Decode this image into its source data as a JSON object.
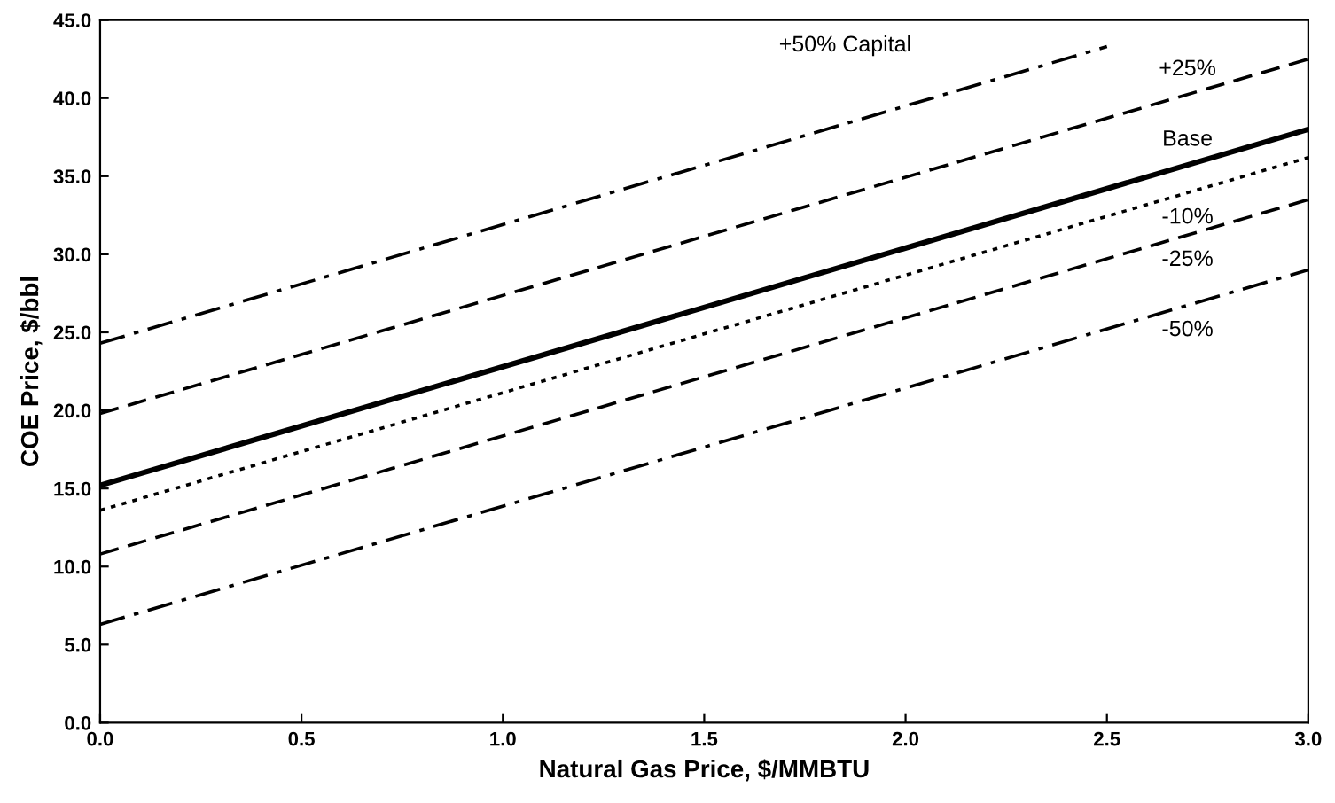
{
  "chart_data": {
    "type": "line",
    "xlabel": "Natural Gas Price, $/MMBTU",
    "ylabel": "COE Price, $/bbl",
    "xlim": [
      0,
      3
    ],
    "ylim": [
      0,
      45
    ],
    "xticks": [
      {
        "value": 0,
        "label": "0.0"
      },
      {
        "value": 0.5,
        "label": "0.5"
      },
      {
        "value": 1,
        "label": "1.0"
      },
      {
        "value": 1.5,
        "label": "1.5"
      },
      {
        "value": 2,
        "label": "2.0"
      },
      {
        "value": 2.5,
        "label": "2.5"
      },
      {
        "value": 3,
        "label": "3.0"
      }
    ],
    "yticks": [
      {
        "value": 0,
        "label": "0.0"
      },
      {
        "value": 5,
        "label": "5.0"
      },
      {
        "value": 10,
        "label": "10.0"
      },
      {
        "value": 15,
        "label": "15.0"
      },
      {
        "value": 20,
        "label": "20.0"
      },
      {
        "value": 25,
        "label": "25.0"
      },
      {
        "value": 30,
        "label": "30.0"
      },
      {
        "value": 35,
        "label": "35.0"
      },
      {
        "value": 40,
        "label": "40.0"
      },
      {
        "value": 45,
        "label": "45.0"
      }
    ],
    "grid": false,
    "legend": false,
    "marker": "none",
    "series": [
      {
        "name": "+50% Capital",
        "color": "#000000",
        "line_style": "dashdot",
        "x": [
          0,
          2.5
        ],
        "values": [
          24.3,
          43.3
        ]
      },
      {
        "name": "+25%",
        "color": "#000000",
        "line_style": "dashed",
        "x": [
          0,
          3
        ],
        "values": [
          19.8,
          42.5
        ]
      },
      {
        "name": "Base",
        "color": "#000000",
        "line_style": "solid",
        "x": [
          0,
          3
        ],
        "values": [
          15.2,
          38.0
        ]
      },
      {
        "name": "-10%",
        "color": "#000000",
        "line_style": "dotted",
        "x": [
          0,
          3
        ],
        "values": [
          13.6,
          36.2
        ]
      },
      {
        "name": "-25%",
        "color": "#000000",
        "line_style": "dashed",
        "x": [
          0,
          3
        ],
        "values": [
          10.8,
          33.5
        ]
      },
      {
        "name": "-50%",
        "color": "#000000",
        "line_style": "dashdot",
        "x": [
          0,
          3
        ],
        "values": [
          6.3,
          29.0
        ]
      }
    ]
  }
}
